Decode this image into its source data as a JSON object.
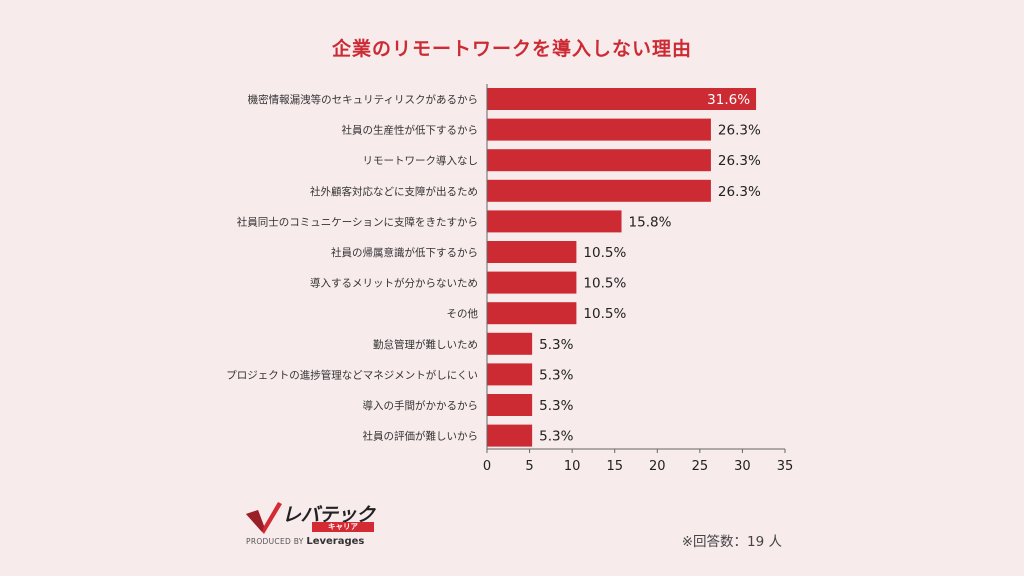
{
  "chart_data": {
    "type": "bar",
    "orientation": "horizontal",
    "title": "企業のリモートワークを導入しない理由",
    "categories": [
      "機密情報漏洩等のセキュリティリスクがあるから",
      "社員の生産性が低下するから",
      "リモートワーク導入なし",
      "社外顧客対応などに支障が出るため",
      "社員同士のコミュニケーションに支障をきたすから",
      "社員の帰属意識が低下するから",
      "導入するメリットが分からないため",
      "その他",
      "勤怠管理が難しいため",
      "プロジェクトの進捗管理などマネジメントがしにくい",
      "導入の手間がかかるから",
      "社員の評価が難しいから"
    ],
    "values": [
      31.6,
      26.3,
      26.3,
      26.3,
      15.8,
      10.5,
      10.5,
      10.5,
      5.3,
      5.3,
      5.3,
      5.3
    ],
    "value_labels": [
      "31.6%",
      "26.3%",
      "26.3%",
      "26.3%",
      "15.8%",
      "10.5%",
      "10.5%",
      "10.5%",
      "5.3%",
      "5.3%",
      "5.3%",
      "5.3%"
    ],
    "xlim": [
      0,
      35
    ],
    "xticks": [
      0,
      5,
      10,
      15,
      20,
      25,
      30,
      35
    ],
    "grid": false,
    "bar_color": "#cc2b34"
  },
  "logo": {
    "name": "レバテック",
    "sub": "キャリア",
    "produced_by": "PRODUCED BY",
    "brand": "Leverages"
  },
  "note": "※回答数：19 人"
}
